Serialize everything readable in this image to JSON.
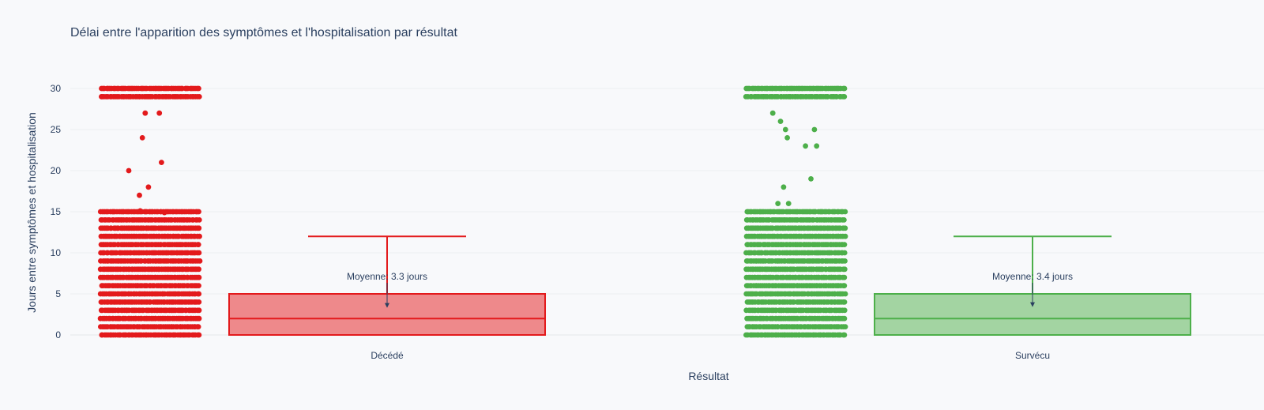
{
  "chart_data": {
    "type": "box",
    "title": "Délai entre l'apparition des symptômes et l'hospitalisation par résultat",
    "xlabel": "Résultat",
    "ylabel": "Jours entre symptômes et hospitalisation",
    "ylim": [
      -1,
      33
    ],
    "yticks": [
      0,
      5,
      10,
      15,
      20,
      25,
      30
    ],
    "grid": true,
    "legend": "none",
    "categories": [
      "Décédé",
      "Survécu"
    ],
    "series": [
      {
        "category": "Décédé",
        "color": "#e31a1c",
        "box": {
          "min": 0,
          "q1": 0,
          "median": 2,
          "q3": 5,
          "upper_fence": 12
        },
        "mean_annotation": "Moyenne: 3.3 jours",
        "mean": 3.3,
        "point_levels": [
          0,
          1,
          2,
          3,
          4,
          5,
          6,
          7,
          8,
          9,
          10,
          11,
          12,
          13,
          14,
          15,
          29,
          30
        ],
        "scatter_points": [
          15.0,
          14.9,
          15.1,
          27,
          27,
          24,
          21,
          20,
          18,
          17
        ]
      },
      {
        "category": "Survécu",
        "color": "#4daf4a",
        "box": {
          "min": 0,
          "q1": 0,
          "median": 2,
          "q3": 5,
          "upper_fence": 12
        },
        "mean_annotation": "Moyenne: 3.4 jours",
        "mean": 3.4,
        "point_levels": [
          0,
          1,
          2,
          3,
          4,
          5,
          6,
          7,
          8,
          9,
          10,
          11,
          12,
          13,
          14,
          15,
          29,
          30
        ],
        "scatter_points": [
          27,
          26,
          25,
          25,
          24,
          23,
          23,
          19,
          18,
          16,
          16
        ]
      }
    ]
  }
}
